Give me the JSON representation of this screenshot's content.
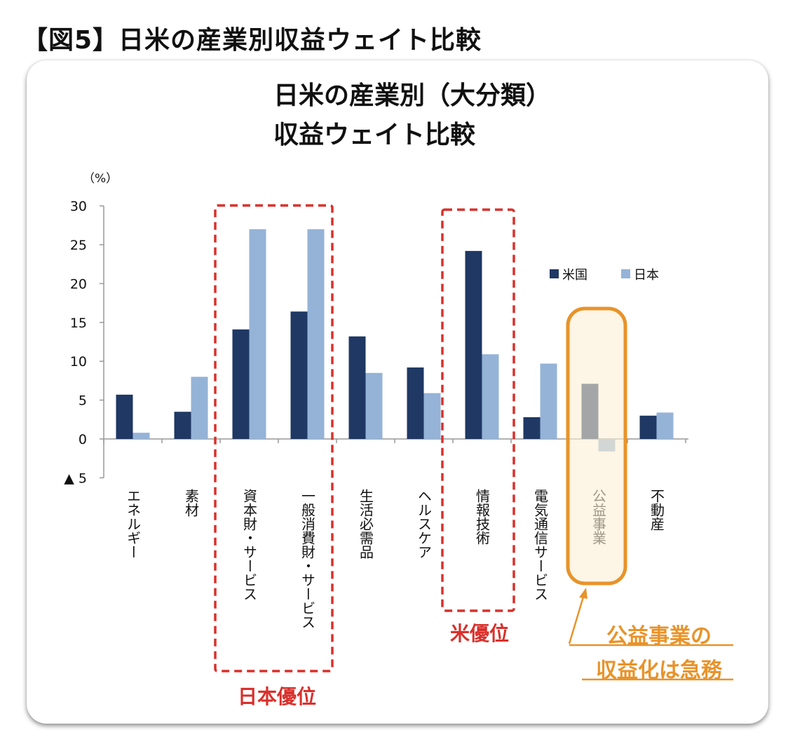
{
  "figure_heading": "【図5】日米の産業別収益ウェイト比較",
  "chart_data": {
    "type": "bar",
    "title": [
      "日米の産業別（大分類）",
      "収益ウェイト比較"
    ],
    "ylabel": "（%）",
    "ylim": [
      -5,
      30
    ],
    "yticks": [
      {
        "value": 30,
        "label": "30"
      },
      {
        "value": 25,
        "label": "25"
      },
      {
        "value": 20,
        "label": "20"
      },
      {
        "value": 15,
        "label": "15"
      },
      {
        "value": 10,
        "label": "10"
      },
      {
        "value": 5,
        "label": "5"
      },
      {
        "value": 0,
        "label": "0"
      },
      {
        "value": -5,
        "label": "▲ 5"
      }
    ],
    "categories": [
      "エネルギー",
      "素材",
      "資本財・サービス",
      "一般消費財・サービス",
      "生活必需品",
      "ヘルスケア",
      "情報技術",
      "電気通信サービス",
      "公益事業",
      "不動産"
    ],
    "series": [
      {
        "name": "米国",
        "color": "#1f3864",
        "values": [
          5.7,
          3.5,
          14.1,
          16.4,
          13.2,
          9.2,
          24.2,
          2.8,
          7.1,
          3.0
        ]
      },
      {
        "name": "日本",
        "color": "#95b3d7",
        "values": [
          0.8,
          8.0,
          27.0,
          27.0,
          8.5,
          5.9,
          10.9,
          9.7,
          -1.6,
          3.4
        ]
      }
    ],
    "legend_position": "top-right",
    "grid": false,
    "annotations": [
      {
        "text": "日本優位",
        "color": "#d9302b",
        "categories": [
          "資本財・サービス",
          "一般消費財・サービス"
        ]
      },
      {
        "text": "米優位",
        "color": "#d9302b",
        "categories": [
          "情報技術"
        ]
      },
      {
        "text": [
          "公益事業の",
          "収益化は急務"
        ],
        "color": "#e8932a",
        "categories": [
          "公益事業"
        ]
      }
    ]
  }
}
